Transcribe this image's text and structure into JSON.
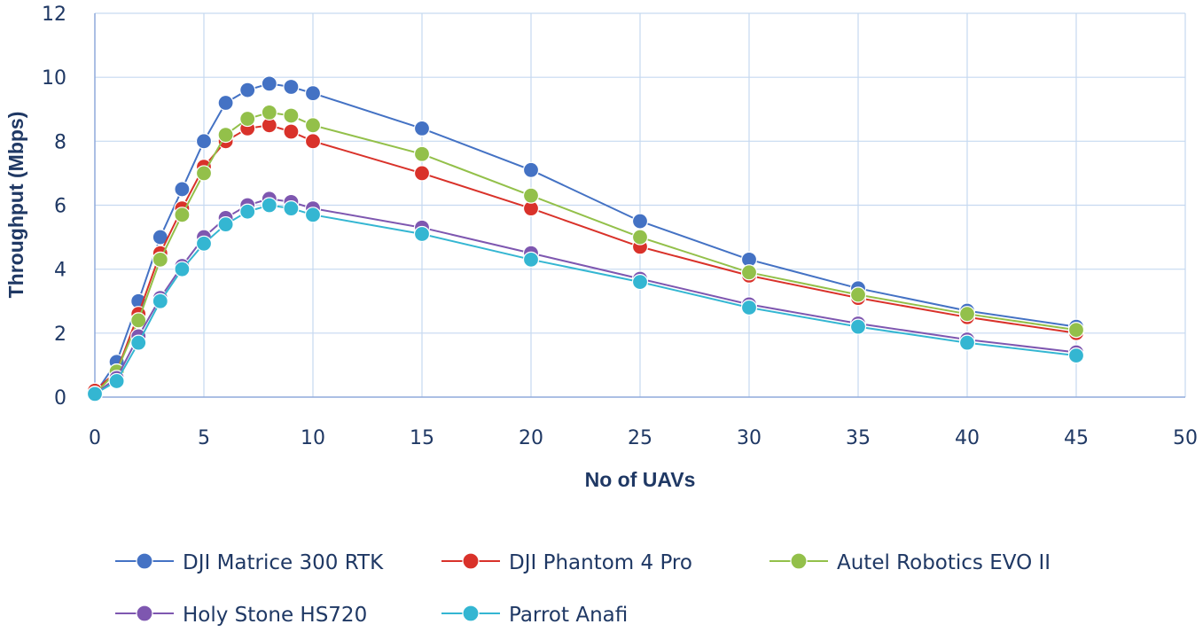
{
  "chart_data": {
    "type": "line",
    "title": "",
    "xlabel": "No of UAVs",
    "ylabel": "Throughput (Mbps)",
    "xlim": [
      0,
      50
    ],
    "ylim": [
      0,
      12
    ],
    "xticks": [
      0,
      5,
      10,
      15,
      20,
      25,
      30,
      35,
      40,
      45,
      50
    ],
    "yticks": [
      0,
      2,
      4,
      6,
      8,
      10,
      12
    ],
    "grid": true,
    "legend_position": "bottom",
    "x": [
      0,
      1,
      2,
      3,
      4,
      5,
      6,
      7,
      8,
      9,
      10,
      15,
      20,
      25,
      30,
      35,
      40,
      45
    ],
    "series": [
      {
        "name": "DJI Matrice 300 RTK",
        "color": "#4472c4",
        "values": [
          0.1,
          1.1,
          3.0,
          5.0,
          6.5,
          8.0,
          9.2,
          9.6,
          9.8,
          9.7,
          9.5,
          8.4,
          7.1,
          5.5,
          4.3,
          3.4,
          2.7,
          2.2
        ]
      },
      {
        "name": "DJI Phantom 4 Pro",
        "color": "#d9322a",
        "values": [
          0.2,
          0.8,
          2.6,
          4.5,
          5.9,
          7.2,
          8.0,
          8.4,
          8.5,
          8.3,
          8.0,
          7.0,
          5.9,
          4.7,
          3.8,
          3.1,
          2.5,
          2.0
        ]
      },
      {
        "name": "Autel Robotics EVO II",
        "color": "#93c04a",
        "values": [
          0.1,
          0.8,
          2.4,
          4.3,
          5.7,
          7.0,
          8.2,
          8.7,
          8.9,
          8.8,
          8.5,
          7.6,
          6.3,
          5.0,
          3.9,
          3.2,
          2.6,
          2.1
        ]
      },
      {
        "name": "Holy Stone HS720",
        "color": "#7e57b0",
        "values": [
          0.1,
          0.6,
          1.9,
          3.1,
          4.1,
          5.0,
          5.6,
          6.0,
          6.2,
          6.1,
          5.9,
          5.3,
          4.5,
          3.7,
          2.9,
          2.3,
          1.8,
          1.4
        ]
      },
      {
        "name": "Parrot Anafi",
        "color": "#34b6d2",
        "values": [
          0.1,
          0.5,
          1.7,
          3.0,
          4.0,
          4.8,
          5.4,
          5.8,
          6.0,
          5.9,
          5.7,
          5.1,
          4.3,
          3.6,
          2.8,
          2.2,
          1.7,
          1.3
        ]
      }
    ]
  }
}
